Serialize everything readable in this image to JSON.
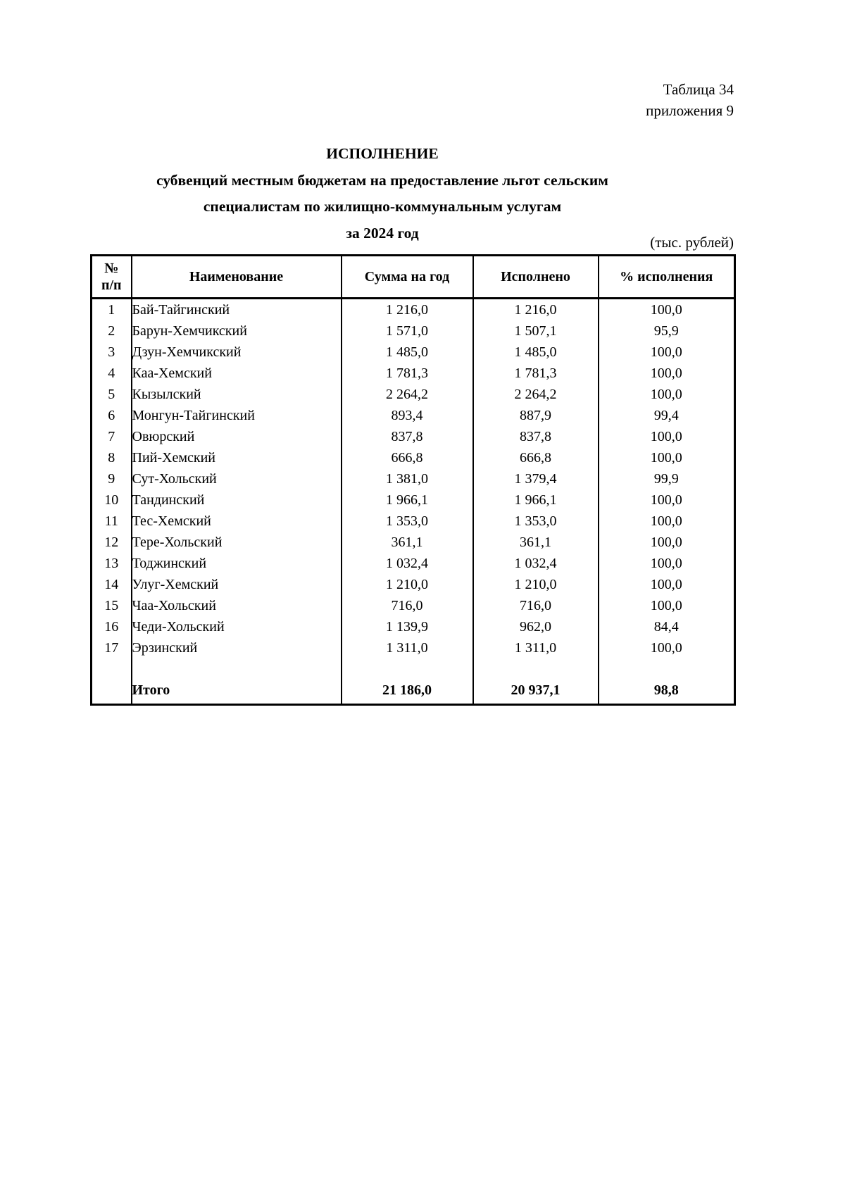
{
  "document": {
    "corner": {
      "line1": "Таблица 34",
      "line2": "приложения 9"
    },
    "title": {
      "line1": "ИСПОЛНЕНИЕ",
      "line2": "субвенций местным бюджетам на предоставление льгот сельским",
      "line3": "специалистам по жилищно-коммунальным услугам",
      "line4": "за 2024 год"
    },
    "unit_note": "(тыс. рублей)"
  },
  "table": {
    "headers": {
      "num_top": "№",
      "num_bottom": "п/п",
      "name": "Наименование",
      "annual_sum": "Сумма на год",
      "executed": "Исполнено",
      "percent": "% исполнения"
    },
    "rows": [
      {
        "num": "1",
        "name": "Бай-Тайгинский",
        "annual_sum": "1 216,0",
        "executed": "1 216,0",
        "percent": "100,0"
      },
      {
        "num": "2",
        "name": "Барун-Хемчикский",
        "annual_sum": "1 571,0",
        "executed": "1 507,1",
        "percent": "95,9"
      },
      {
        "num": "3",
        "name": "Дзун-Хемчикский",
        "annual_sum": "1 485,0",
        "executed": "1 485,0",
        "percent": "100,0"
      },
      {
        "num": "4",
        "name": "Каа-Хемский",
        "annual_sum": "1 781,3",
        "executed": "1 781,3",
        "percent": "100,0"
      },
      {
        "num": "5",
        "name": "Кызылский",
        "annual_sum": "2 264,2",
        "executed": "2 264,2",
        "percent": "100,0"
      },
      {
        "num": "6",
        "name": "Монгун-Тайгинский",
        "annual_sum": "893,4",
        "executed": "887,9",
        "percent": "99,4"
      },
      {
        "num": "7",
        "name": "Овюрский",
        "annual_sum": "837,8",
        "executed": "837,8",
        "percent": "100,0"
      },
      {
        "num": "8",
        "name": "Пий-Хемский",
        "annual_sum": "666,8",
        "executed": "666,8",
        "percent": "100,0"
      },
      {
        "num": "9",
        "name": "Сут-Хольский",
        "annual_sum": "1 381,0",
        "executed": "1 379,4",
        "percent": "99,9"
      },
      {
        "num": "10",
        "name": "Тандинский",
        "annual_sum": "1 966,1",
        "executed": "1 966,1",
        "percent": "100,0"
      },
      {
        "num": "11",
        "name": "Тес-Хемский",
        "annual_sum": "1 353,0",
        "executed": "1 353,0",
        "percent": "100,0"
      },
      {
        "num": "12",
        "name": "Тере-Хольский",
        "annual_sum": "361,1",
        "executed": "361,1",
        "percent": "100,0"
      },
      {
        "num": "13",
        "name": "Тоджинский",
        "annual_sum": "1 032,4",
        "executed": "1 032,4",
        "percent": "100,0"
      },
      {
        "num": "14",
        "name": "Улуг-Хемский",
        "annual_sum": "1 210,0",
        "executed": "1 210,0",
        "percent": "100,0"
      },
      {
        "num": "15",
        "name": "Чаа-Хольский",
        "annual_sum": "716,0",
        "executed": "716,0",
        "percent": "100,0"
      },
      {
        "num": "16",
        "name": "Чеди-Хольский",
        "annual_sum": "1 139,9",
        "executed": "962,0",
        "percent": "84,4"
      },
      {
        "num": "17",
        "name": "Эрзинский",
        "annual_sum": "1 311,0",
        "executed": "1 311,0",
        "percent": "100,0"
      }
    ],
    "total": {
      "label": "Итого",
      "annual_sum": "21 186,0",
      "executed": "20 937,1",
      "percent": "98,8"
    }
  },
  "colors": {
    "background": "#ffffff",
    "text": "#000000",
    "border": "#000000"
  }
}
